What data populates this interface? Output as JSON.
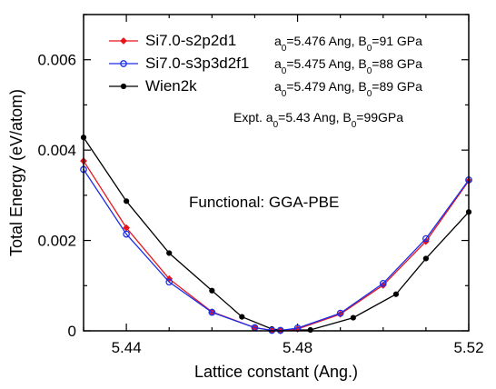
{
  "chart_data": {
    "type": "line",
    "xlabel": "Lattice constant (Ang.)",
    "ylabel": "Total Energy (eV/atom)",
    "xlim": [
      5.43,
      5.52
    ],
    "ylim": [
      0,
      0.007
    ],
    "x_ticks": [
      5.44,
      5.48,
      5.52
    ],
    "x_tick_labels": [
      "5.44",
      "5.48",
      "5.52"
    ],
    "y_ticks": [
      0,
      0.002,
      0.004,
      0.006
    ],
    "y_tick_labels": [
      "0",
      "0.002",
      "0.004",
      "0.006"
    ],
    "legend_position": "top-left",
    "annotation": "Functional: GGA-PBE",
    "series": [
      {
        "name": "Si7.0-s2p2d1",
        "color": "#e8141c",
        "marker": "filled-diamond",
        "params": {
          "a0_text": "a",
          "a0_sub": "0",
          "a0_rest": "=5.476 Ang, B",
          "b0_sub": "0",
          "b0_rest": "=91 GPa"
        },
        "x": [
          5.43,
          5.44,
          5.45,
          5.46,
          5.47,
          5.474,
          5.476,
          5.48,
          5.49,
          5.5,
          5.51,
          5.52
        ],
        "values": [
          0.00376,
          0.00228,
          0.00115,
          0.00042,
          7e-05,
          1e-05,
          0.0,
          4e-05,
          0.00037,
          0.00101,
          0.00198,
          0.00332
        ]
      },
      {
        "name": "Si7.0-s3p3d2f1",
        "color": "#1c2ee8",
        "marker": "open-circle",
        "params": {
          "a0_text": "a",
          "a0_sub": "0",
          "a0_rest": "=5.475 Ang, B",
          "b0_sub": "0",
          "b0_rest": "=88 GPa"
        },
        "x": [
          5.43,
          5.44,
          5.45,
          5.46,
          5.47,
          5.474,
          5.476,
          5.48,
          5.49,
          5.5,
          5.51,
          5.52
        ],
        "values": [
          0.00357,
          0.00214,
          0.00108,
          0.00041,
          7e-05,
          1e-05,
          1e-05,
          6e-05,
          0.00039,
          0.00105,
          0.00204,
          0.00334
        ]
      },
      {
        "name": "Wien2k",
        "color": "#000000",
        "marker": "filled-circle",
        "params": {
          "a0_text": "a",
          "a0_sub": "0",
          "a0_rest": "=5.479 Ang, B",
          "b0_sub": "0",
          "b0_rest": "=89 GPa"
        },
        "x": [
          5.43,
          5.44,
          5.45,
          5.46,
          5.467,
          5.474,
          5.476,
          5.483,
          5.493,
          5.503,
          5.51,
          5.52
        ],
        "values": [
          0.00428,
          0.00287,
          0.00172,
          0.00089,
          0.00031,
          4e-05,
          2e-05,
          2e-05,
          0.00029,
          0.00081,
          0.0016,
          0.00263
        ]
      }
    ],
    "expt": {
      "label": "Expt.",
      "a0_text": "a",
      "a0_sub": "0",
      "a0_rest": "=5.43  Ang, B",
      "b0_sub": "0",
      "b0_rest": "=99GPa"
    }
  }
}
